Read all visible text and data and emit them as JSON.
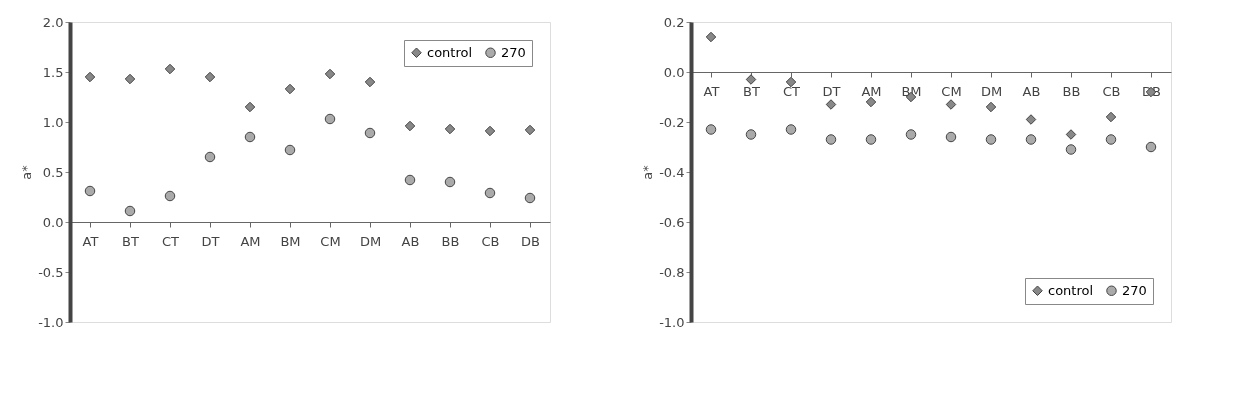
{
  "chart_data": [
    {
      "type": "scatter",
      "ylabel": "a*",
      "categories": [
        "AT",
        "BT",
        "CT",
        "DT",
        "AM",
        "BM",
        "CM",
        "DM",
        "AB",
        "BB",
        "CB",
        "DB"
      ],
      "series": [
        {
          "name": "control",
          "color": "#888888",
          "marker": "diamond",
          "values": [
            1.45,
            1.43,
            1.53,
            1.45,
            1.15,
            1.33,
            1.48,
            1.4,
            0.96,
            0.93,
            0.91,
            0.92
          ]
        },
        {
          "name": "270",
          "color": "#aaaaaa",
          "marker": "circle",
          "values": [
            0.31,
            0.11,
            0.26,
            0.65,
            0.85,
            0.72,
            1.03,
            0.89,
            0.42,
            0.4,
            0.29,
            0.24
          ]
        }
      ],
      "ylim": [
        -1.0,
        2.0
      ],
      "yticks": [
        {
          "value": -1,
          "label": "-1.0"
        },
        {
          "value": -0.5,
          "label": "-0.5"
        },
        {
          "value": 0,
          "label": "0.0"
        },
        {
          "value": 0.5,
          "label": "0.5"
        },
        {
          "value": 1,
          "label": "1.0"
        },
        {
          "value": 1.5,
          "label": "1.5"
        },
        {
          "value": 2,
          "label": "2.0"
        }
      ],
      "grid": false,
      "legend": "top right"
    },
    {
      "type": "scatter",
      "ylabel": "a*",
      "categories": [
        "AT",
        "BT",
        "CT",
        "DT",
        "AM",
        "BM",
        "CM",
        "DM",
        "AB",
        "BB",
        "CB",
        "DB"
      ],
      "series": [
        {
          "name": "control",
          "color": "#888888",
          "marker": "diamond",
          "values": [
            0.14,
            -0.03,
            -0.04,
            -0.13,
            -0.12,
            -0.1,
            -0.13,
            -0.14,
            -0.19,
            -0.25,
            -0.18,
            -0.08
          ]
        },
        {
          "name": "270",
          "color": "#aaaaaa",
          "marker": "circle",
          "values": [
            -0.23,
            -0.25,
            -0.23,
            -0.27,
            -0.27,
            -0.25,
            -0.26,
            -0.27,
            -0.27,
            -0.31,
            -0.27,
            -0.3
          ]
        }
      ],
      "ylim": [
        -1.0,
        0.2
      ],
      "yticks": [
        {
          "value": -1,
          "label": "-1.0"
        },
        {
          "value": -0.8,
          "label": "-0.8"
        },
        {
          "value": -0.6,
          "label": "-0.6"
        },
        {
          "value": -0.4,
          "label": "-0.4"
        },
        {
          "value": -0.2,
          "label": "-0.2"
        },
        {
          "value": 0,
          "label": "0.0"
        },
        {
          "value": 0.2,
          "label": "0.2"
        }
      ],
      "grid": false,
      "legend": "bottom right"
    }
  ]
}
